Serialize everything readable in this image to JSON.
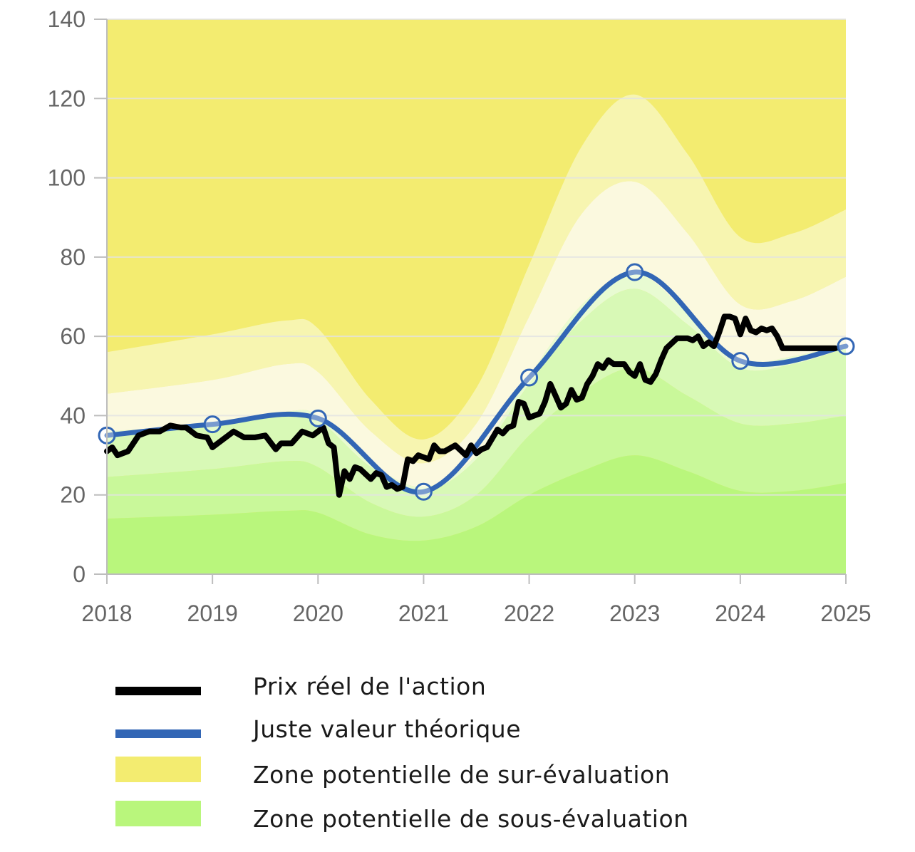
{
  "chart_data": {
    "type": "line",
    "x_ticks": [
      "2018",
      "2019",
      "2020",
      "2021",
      "2022",
      "2023",
      "2024",
      "2025"
    ],
    "y_ticks": [
      "0",
      "20",
      "40",
      "60",
      "80",
      "100",
      "120",
      "140"
    ],
    "xlim": [
      2018,
      2025
    ],
    "ylim": [
      0,
      140
    ],
    "grid": true,
    "bands": {
      "x": [
        2018,
        2019,
        2019.7,
        2020,
        2020.5,
        2021,
        2021.5,
        2022,
        2022.5,
        2023,
        2023.5,
        2024,
        2024.5,
        2025
      ],
      "upper_outer": [
        56,
        60.5,
        64,
        62,
        44,
        34,
        47,
        78,
        108,
        121,
        106,
        85,
        86,
        92
      ],
      "upper_middle": [
        45.5,
        49,
        53,
        51,
        36,
        28,
        38,
        65,
        91,
        99,
        86,
        68,
        69,
        75
      ],
      "upper_inner": [
        36,
        38,
        41,
        40,
        28,
        22,
        30,
        50,
        68,
        76,
        66,
        54,
        55,
        58
      ],
      "lower_inner": [
        35,
        37.5,
        40,
        39,
        27,
        21,
        29,
        48,
        64,
        72,
        63,
        52,
        53,
        57
      ],
      "lower_middle": [
        24.5,
        26.5,
        28.5,
        27,
        18,
        14.5,
        20,
        35,
        46,
        52,
        45,
        38,
        38,
        40
      ],
      "lower_outer": [
        14,
        15,
        16,
        15.5,
        10,
        8.5,
        12,
        20,
        26,
        30,
        26,
        21,
        21,
        23
      ]
    },
    "series": [
      {
        "name": "Prix réel de l'action",
        "color": "#000000",
        "x": [
          2018.0,
          2018.05,
          2018.1,
          2018.2,
          2018.3,
          2018.4,
          2018.5,
          2018.6,
          2018.7,
          2018.75,
          2018.85,
          2018.95,
          2019.0,
          2019.1,
          2019.2,
          2019.3,
          2019.4,
          2019.5,
          2019.6,
          2019.65,
          2019.75,
          2019.85,
          2019.95,
          2020.05,
          2020.1,
          2020.15,
          2020.2,
          2020.25,
          2020.3,
          2020.35,
          2020.4,
          2020.5,
          2020.55,
          2020.6,
          2020.65,
          2020.7,
          2020.75,
          2020.8,
          2020.85,
          2020.9,
          2020.95,
          2021.0,
          2021.05,
          2021.1,
          2021.15,
          2021.2,
          2021.3,
          2021.4,
          2021.45,
          2021.5,
          2021.55,
          2021.6,
          2021.7,
          2021.75,
          2021.8,
          2021.85,
          2021.9,
          2021.95,
          2022.0,
          2022.05,
          2022.1,
          2022.15,
          2022.2,
          2022.3,
          2022.35,
          2022.4,
          2022.45,
          2022.5,
          2022.55,
          2022.6,
          2022.65,
          2022.7,
          2022.75,
          2022.8,
          2022.9,
          2022.95,
          2023.0,
          2023.05,
          2023.1,
          2023.15,
          2023.2,
          2023.25,
          2023.3,
          2023.4,
          2023.5,
          2023.55,
          2023.6,
          2023.65,
          2023.7,
          2023.75,
          2023.8,
          2023.85,
          2023.9,
          2023.95,
          2024.0,
          2024.05,
          2024.1,
          2024.15,
          2024.2,
          2024.25,
          2024.3,
          2024.35,
          2024.4,
          2024.45,
          2024.5,
          2024.55,
          2024.6,
          2024.65,
          2024.7,
          2024.75,
          2024.8,
          2024.85,
          2024.9
        ],
        "values": [
          31,
          32,
          30,
          31,
          35,
          36,
          36,
          37.5,
          37,
          37,
          35,
          34.5,
          32,
          34,
          36,
          34.5,
          34.5,
          35,
          31.5,
          33,
          33,
          36,
          35,
          37,
          33,
          32,
          20,
          26,
          24,
          27,
          26.5,
          24,
          25.5,
          25,
          22,
          22.5,
          21.5,
          22,
          29,
          28.5,
          30,
          29.5,
          29,
          32.5,
          31,
          31,
          32.5,
          30,
          32.5,
          30.5,
          31.5,
          32,
          36.5,
          35.5,
          37,
          37.5,
          43.5,
          43,
          39.5,
          40,
          40.5,
          43.5,
          48,
          42,
          43,
          46.5,
          44,
          44.5,
          48,
          50,
          53,
          52,
          54,
          53,
          53,
          51,
          50,
          53,
          49,
          48.5,
          50.5,
          54,
          57,
          59.5,
          59.5,
          59,
          60,
          57.5,
          58.5,
          57.5,
          61,
          65,
          65,
          64.5,
          60.5,
          64.5,
          61.5,
          61,
          62,
          61.5,
          62,
          60,
          57,
          57,
          57,
          57,
          57,
          57,
          57,
          57,
          57,
          57,
          57
        ],
        "_note": ""
      },
      {
        "name": "Juste valeur théorique",
        "color": "#3266b5",
        "x": [
          2018,
          2019,
          2020,
          2021,
          2022,
          2023,
          2024,
          2025
        ],
        "values": [
          35,
          37.8,
          39.3,
          20.8,
          49.6,
          76.2,
          53.8,
          57.5
        ]
      }
    ]
  },
  "legend": {
    "items": [
      {
        "label": "Prix réel de l'action",
        "color": "#000000",
        "kind": "line"
      },
      {
        "label": "Juste valeur théorique",
        "color": "#3266b5",
        "kind": "line"
      },
      {
        "label": "Zone potentielle de sur-évaluation",
        "color": "#f3ec70",
        "kind": "area"
      },
      {
        "label": "Zone potentielle de sous-évaluation",
        "color": "#b9f67c",
        "kind": "area"
      }
    ]
  },
  "colors": {
    "over_outer": "#f3ec70",
    "over_middle": "#f7f5b0",
    "over_inner": "#fbf9df",
    "fair_band": "#e8fbd2",
    "under_inner": "#d8f9b6",
    "under_middle": "#c9f89a",
    "under_outer": "#b9f67c",
    "grid": "#e3e3e3",
    "axis": "#666666"
  }
}
